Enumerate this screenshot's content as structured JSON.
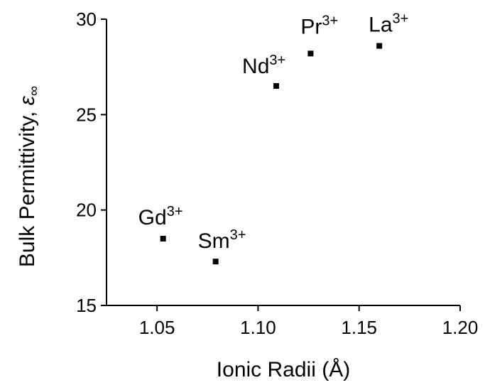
{
  "chart_data": {
    "type": "scatter",
    "xlabel": "Ionic Radii (Å)",
    "ylabel_text": "Bulk Permittivity, ",
    "ylabel_symbol": "ε",
    "ylabel_subscript": "∞",
    "xlim": [
      1.025,
      1.2
    ],
    "ylim": [
      15,
      30
    ],
    "x_ticks": [
      1.05,
      1.1,
      1.15,
      1.2
    ],
    "x_tick_labels": [
      "1.05",
      "1.10",
      "1.15",
      "1.20"
    ],
    "y_ticks": [
      15,
      20,
      25,
      30
    ],
    "y_tick_labels": [
      "15",
      "20",
      "25",
      "30"
    ],
    "grid": false,
    "points": [
      {
        "label": "Gd",
        "charge": "3+",
        "x": 1.053,
        "y": 18.5
      },
      {
        "label": "Sm",
        "charge": "3+",
        "x": 1.079,
        "y": 17.3
      },
      {
        "label": "Nd",
        "charge": "3+",
        "x": 1.109,
        "y": 26.5
      },
      {
        "label": "Pr",
        "charge": "3+",
        "x": 1.126,
        "y": 28.2
      },
      {
        "label": "La",
        "charge": "3+",
        "x": 1.16,
        "y": 28.6
      }
    ]
  }
}
